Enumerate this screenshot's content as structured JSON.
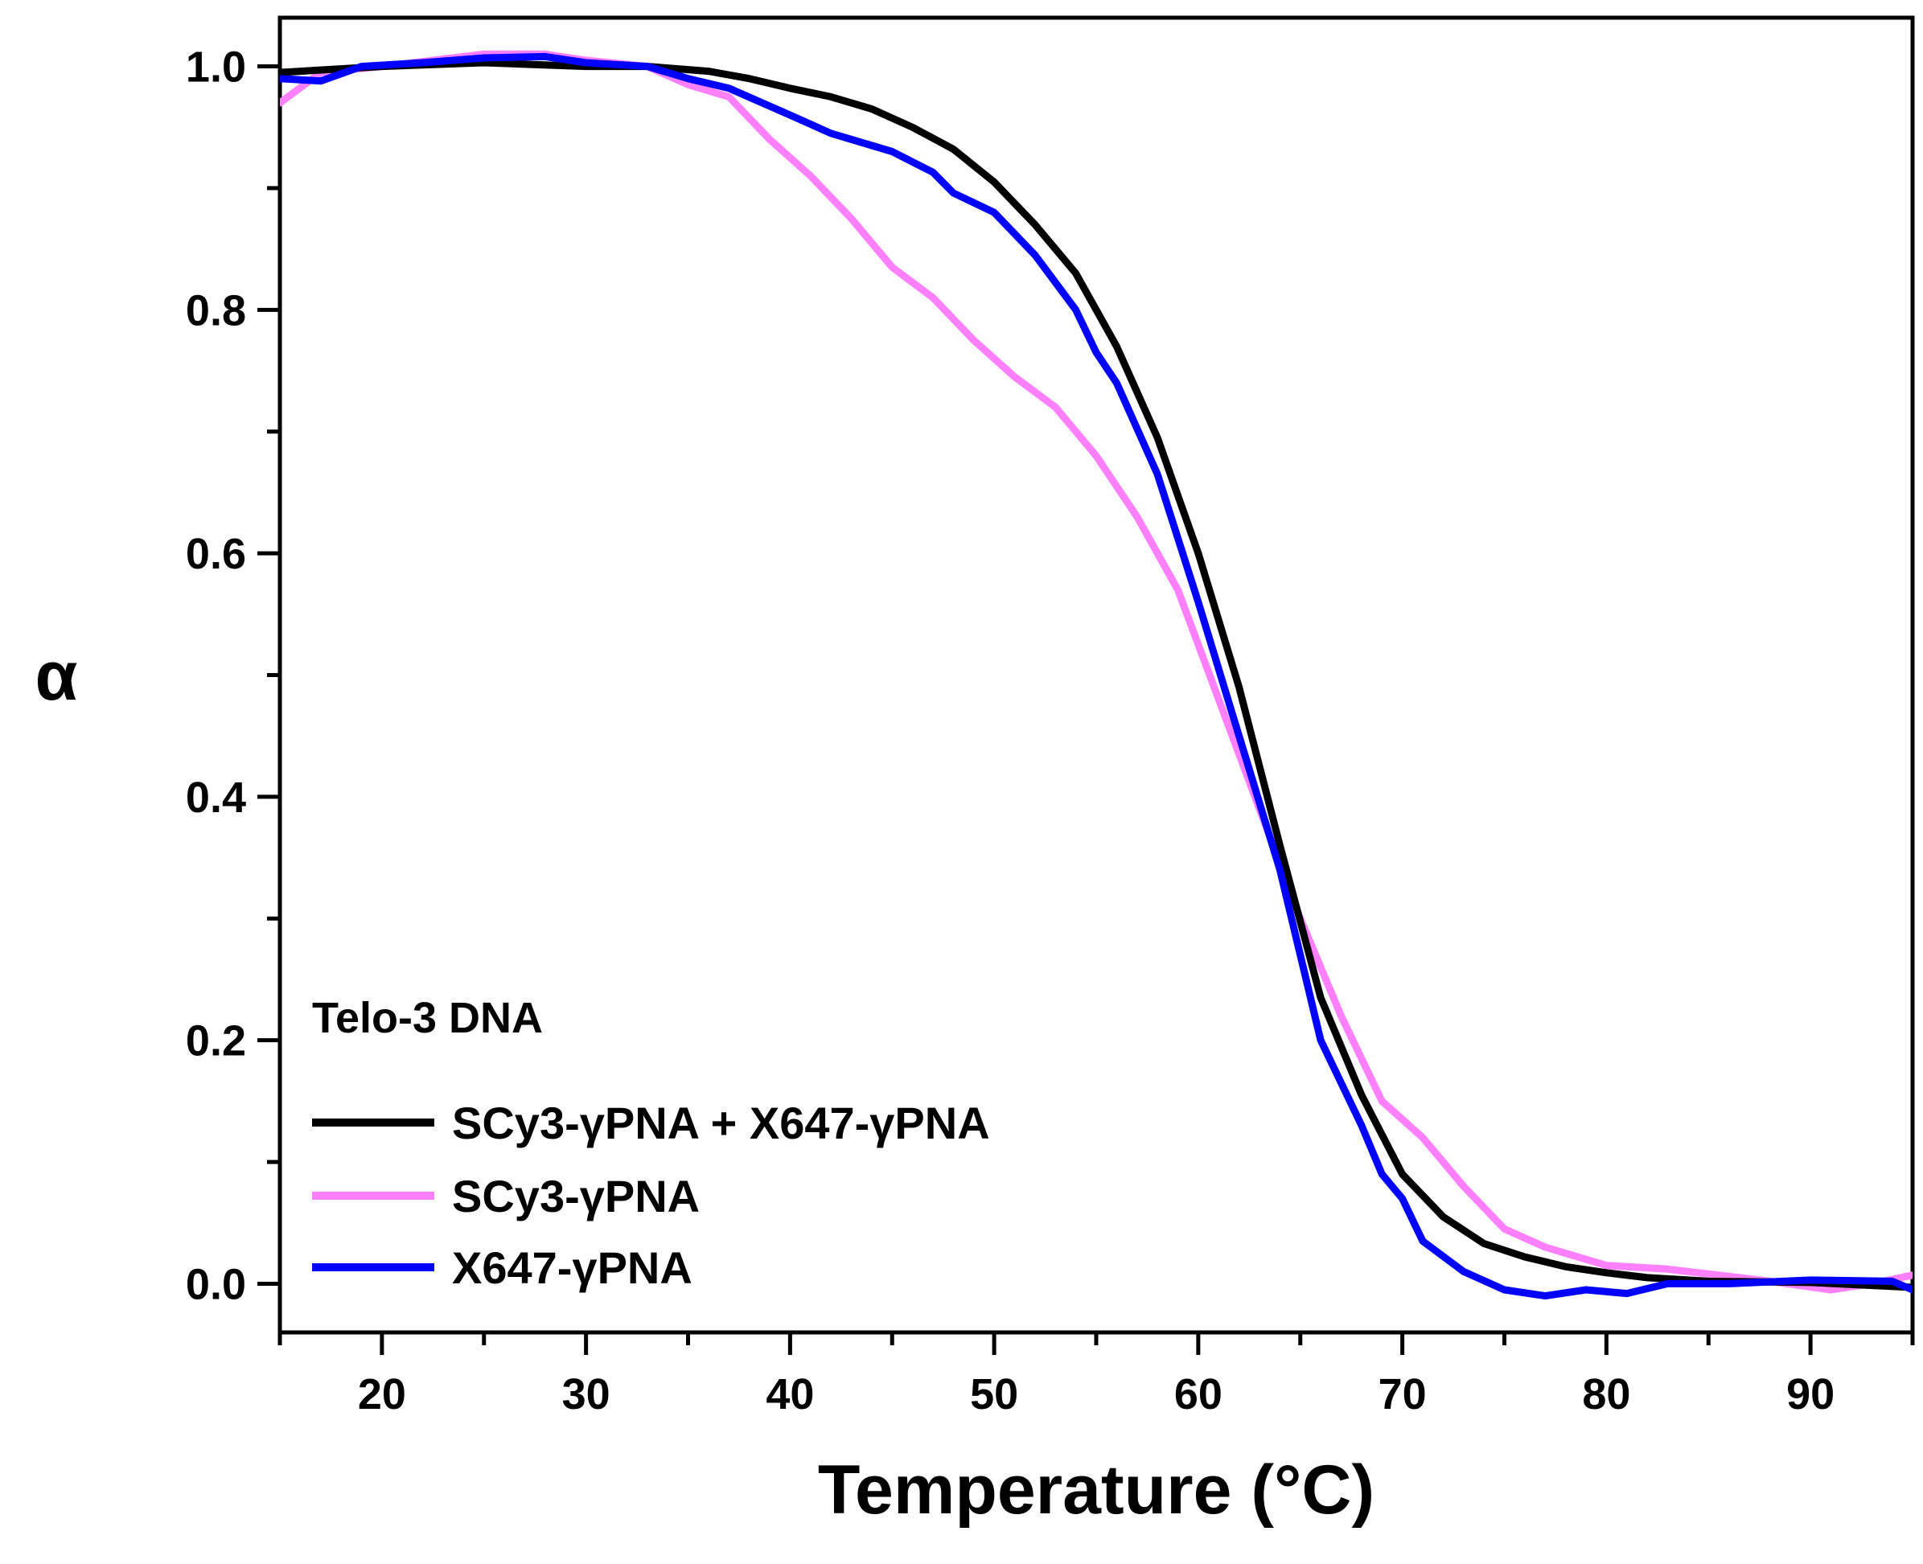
{
  "chart_data": {
    "type": "line",
    "title": "",
    "xlabel": "Temperature (°C)",
    "ylabel": "α",
    "xlim": [
      15,
      95
    ],
    "ylim": [
      -0.04,
      1.04
    ],
    "x_ticks": [
      20,
      30,
      40,
      50,
      60,
      70,
      80,
      90
    ],
    "x_tick_labels": [
      "20",
      "30",
      "40",
      "50",
      "60",
      "70",
      "80",
      "90"
    ],
    "x_minor_ticks": [
      15,
      25,
      35,
      45,
      55,
      65,
      75,
      85,
      95
    ],
    "y_ticks": [
      0.0,
      0.2,
      0.4,
      0.6,
      0.8,
      1.0
    ],
    "y_tick_labels": [
      "0.0",
      "0.2",
      "0.4",
      "0.6",
      "0.8",
      "1.0"
    ],
    "y_minor_ticks": [
      0.1,
      0.3,
      0.5,
      0.7,
      0.9
    ],
    "grid": false,
    "legend": {
      "title": "Telo-3 DNA",
      "position": "bottom-left"
    },
    "series": [
      {
        "name": "SCy3-γPNA + X647-γPNA",
        "color": "#000000",
        "x": [
          15,
          20,
          25,
          30,
          33,
          36,
          38,
          40,
          42,
          44,
          46,
          48,
          50,
          52,
          54,
          56,
          58,
          60,
          62,
          64,
          66,
          68,
          70,
          72,
          74,
          76,
          78,
          80,
          82,
          85,
          90,
          95
        ],
        "y": [
          0.995,
          1.0,
          1.003,
          1.0,
          1.0,
          0.996,
          0.99,
          0.982,
          0.975,
          0.965,
          0.95,
          0.932,
          0.905,
          0.87,
          0.83,
          0.77,
          0.695,
          0.6,
          0.49,
          0.36,
          0.235,
          0.155,
          0.09,
          0.055,
          0.033,
          0.022,
          0.014,
          0.009,
          0.005,
          0.002,
          0.001,
          -0.003
        ]
      },
      {
        "name": "SCy3-γPNA",
        "color": "#FF80FF",
        "x": [
          15,
          17,
          20,
          25,
          28,
          30,
          33,
          35,
          37,
          39,
          41,
          43,
          45,
          47,
          49,
          51,
          53,
          55,
          57,
          59,
          61,
          63,
          65,
          67,
          69,
          71,
          73,
          75,
          77,
          80,
          83,
          85,
          88,
          91,
          93,
          95
        ],
        "y": [
          0.97,
          0.995,
          1.0,
          1.01,
          1.01,
          1.005,
          1.0,
          0.985,
          0.975,
          0.94,
          0.91,
          0.875,
          0.835,
          0.81,
          0.775,
          0.745,
          0.72,
          0.68,
          0.63,
          0.57,
          0.48,
          0.39,
          0.3,
          0.22,
          0.15,
          0.12,
          0.08,
          0.045,
          0.03,
          0.015,
          0.012,
          0.008,
          0.002,
          -0.005,
          0.0,
          0.007
        ]
      },
      {
        "name": "X647-γPNA",
        "color": "#0000FF",
        "x": [
          15,
          17,
          19,
          22,
          25,
          28,
          30,
          33,
          35,
          37,
          40,
          42,
          45,
          47,
          48,
          50,
          52,
          54,
          55,
          56,
          58,
          60,
          62,
          64,
          66,
          68,
          69,
          70,
          71,
          73,
          75,
          77,
          79,
          81,
          83,
          86,
          90,
          94,
          95
        ],
        "y": [
          0.99,
          0.988,
          1.0,
          1.003,
          1.007,
          1.008,
          1.003,
          1.0,
          0.99,
          0.982,
          0.96,
          0.945,
          0.93,
          0.913,
          0.896,
          0.88,
          0.845,
          0.8,
          0.765,
          0.74,
          0.665,
          0.56,
          0.45,
          0.34,
          0.2,
          0.13,
          0.09,
          0.07,
          0.035,
          0.01,
          -0.005,
          -0.01,
          -0.005,
          -0.008,
          0.0,
          0.0,
          0.003,
          0.002,
          -0.005
        ]
      }
    ]
  }
}
